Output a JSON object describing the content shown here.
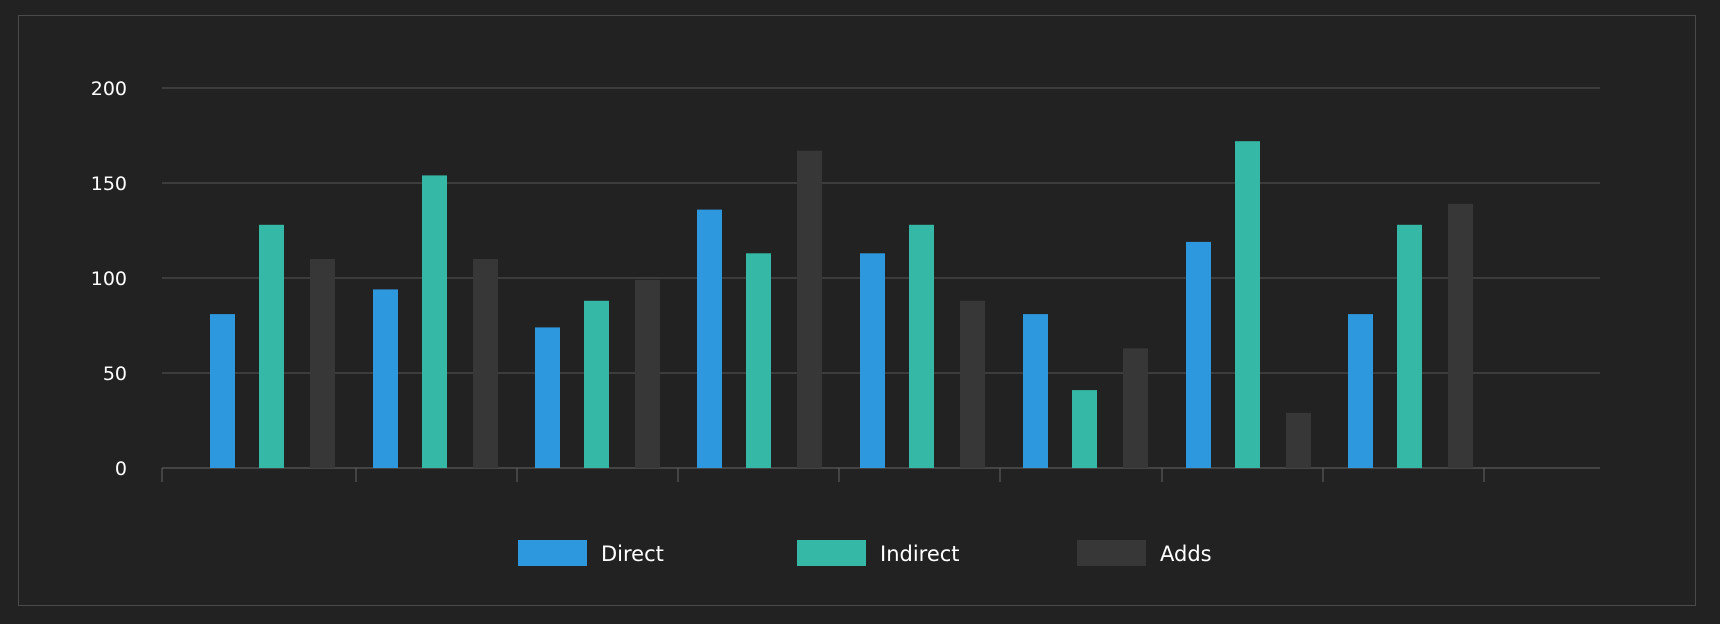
{
  "chart_data": {
    "type": "bar",
    "categories": [
      "",
      "",
      "",
      "",
      "",
      "",
      "",
      ""
    ],
    "series": [
      {
        "name": "Direct",
        "color": "#2d98dd",
        "values": [
          81,
          94,
          74,
          136,
          113,
          81,
          119,
          81
        ]
      },
      {
        "name": "Indirect",
        "color": "#35b9a6",
        "values": [
          128,
          154,
          88,
          113,
          128,
          41,
          172,
          128
        ]
      },
      {
        "name": "Adds",
        "color": "#373737",
        "values": [
          110,
          110,
          99,
          167,
          88,
          63,
          29,
          139
        ]
      }
    ],
    "ylim": [
      0,
      200
    ],
    "yticks": [
      "0",
      "50",
      "100",
      "150",
      "200"
    ],
    "grid": true,
    "legend_position": "bottom",
    "title": "",
    "xlabel": "",
    "ylabel": ""
  },
  "colors": {
    "background": "#222222",
    "gridline": "#555555",
    "axis": "#666666",
    "text": "#ffffff"
  }
}
